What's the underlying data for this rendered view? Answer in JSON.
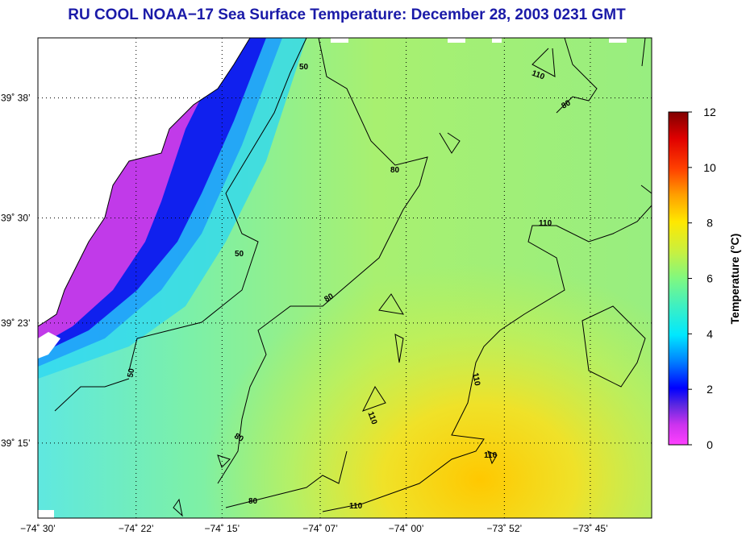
{
  "title": "RU COOL  NOAA−17  Sea Surface Temperature:  December 28, 2003 0231 GMT",
  "map": {
    "lat_ticks": [
      {
        "value": 39.6333,
        "label": "39˚ 38’"
      },
      {
        "value": 39.5,
        "label": "39˚ 30’"
      },
      {
        "value": 39.3833,
        "label": "39˚ 23’"
      },
      {
        "value": 39.25,
        "label": "39˚ 15’"
      }
    ],
    "lon_ticks": [
      {
        "value": -74.5,
        "label": "−74˚ 30’"
      },
      {
        "value": -74.3667,
        "label": "−74˚ 22’"
      },
      {
        "value": -74.25,
        "label": "−74˚ 15’"
      },
      {
        "value": -74.1167,
        "label": "−74˚ 07’"
      },
      {
        "value": -74.0,
        "label": "−74˚ 00’"
      },
      {
        "value": -73.8667,
        "label": "−73˚ 52’"
      },
      {
        "value": -73.75,
        "label": "−73˚ 45’"
      }
    ],
    "contour_labels": [
      "50",
      "50",
      "50",
      "80",
      "80",
      "80",
      "80",
      "110",
      "110",
      "110",
      "110",
      "110",
      "110",
      "80"
    ]
  },
  "colorbar": {
    "label": "Temperature (°C)",
    "min": 0,
    "max": 12,
    "ticks": [
      "0",
      "2",
      "4",
      "6",
      "8",
      "10",
      "12"
    ]
  }
}
